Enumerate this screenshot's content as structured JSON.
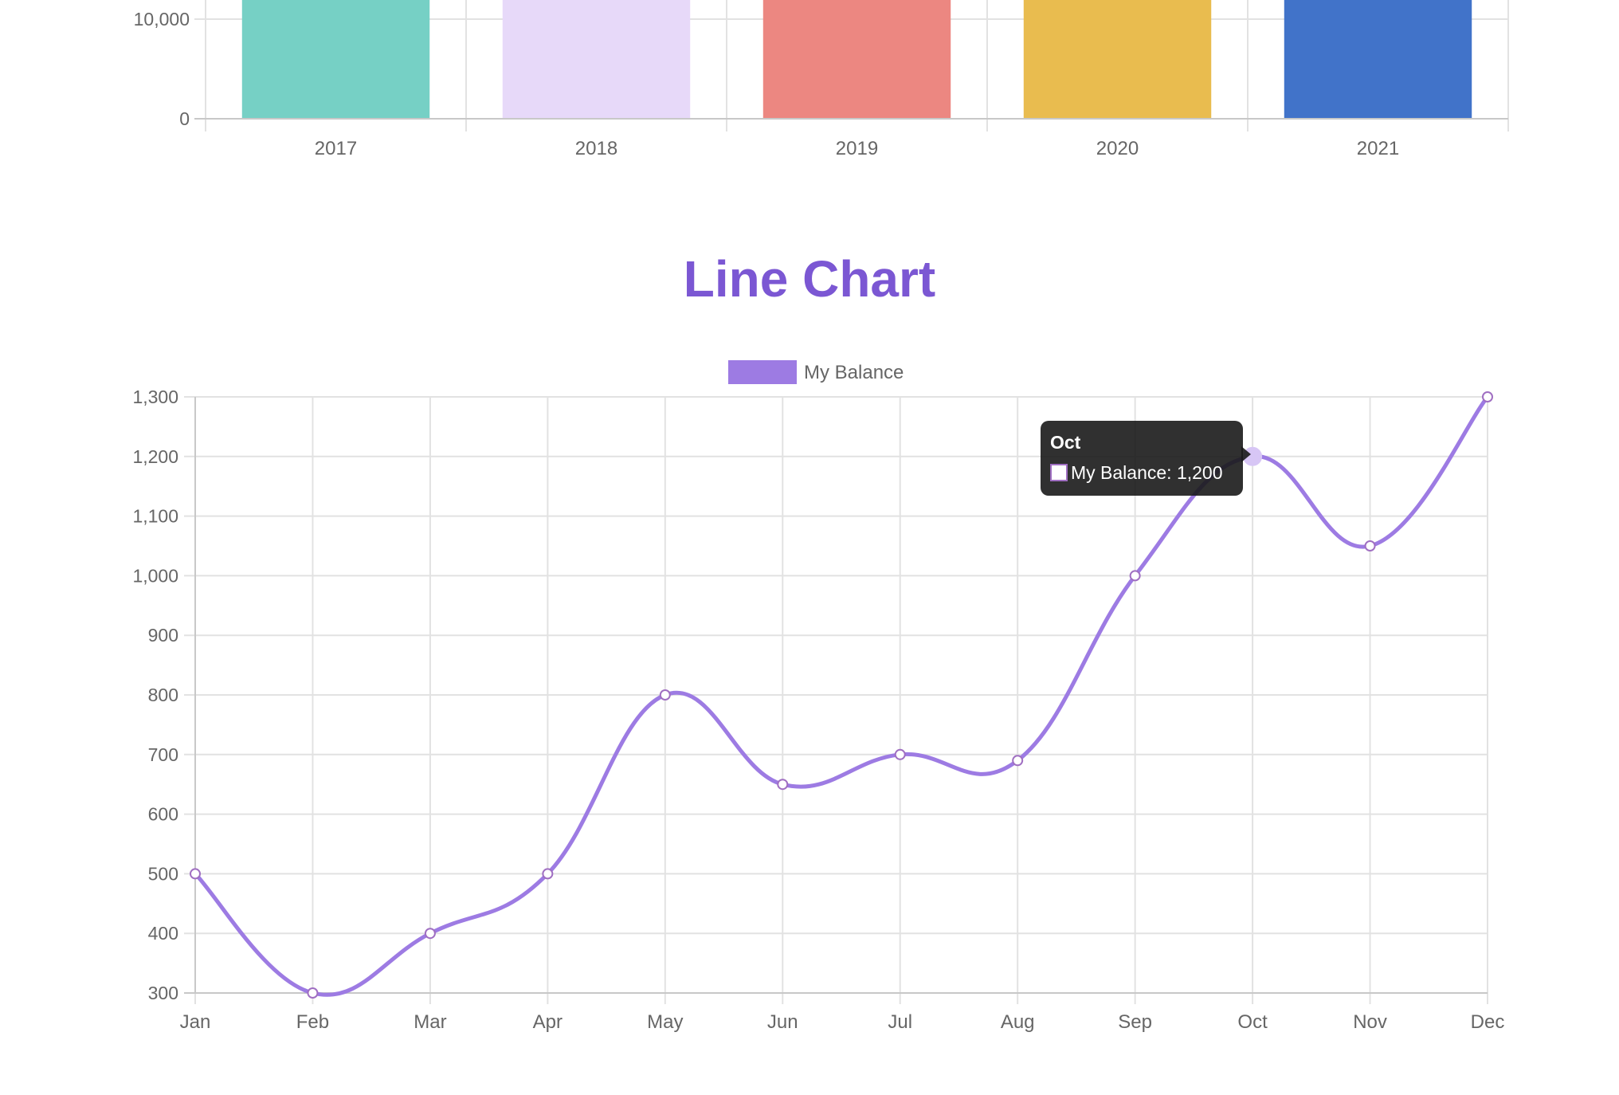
{
  "chart_data": [
    {
      "type": "bar",
      "categories": [
        "2017",
        "2018",
        "2019",
        "2020",
        "2021"
      ],
      "y_ticks_visible": [
        "0",
        "10,000"
      ],
      "colors": [
        "#76d0c5",
        "#e7d9f9",
        "#ec8781",
        "#e9bc4f",
        "#4173c9"
      ],
      "grid": true
    },
    {
      "type": "line",
      "title": "Line Chart",
      "legend": {
        "label": "My Balance",
        "color": "#9d7be3",
        "placement": "top-center"
      },
      "categories": [
        "Jan",
        "Feb",
        "Mar",
        "Apr",
        "May",
        "Jun",
        "Jul",
        "Aug",
        "Sep",
        "Oct",
        "Nov",
        "Dec"
      ],
      "series": [
        {
          "name": "My Balance",
          "values": [
            500,
            300,
            400,
            500,
            800,
            650,
            700,
            690,
            1000,
            1200,
            1050,
            1300
          ],
          "color": "#9d7be3"
        }
      ],
      "y_ticks": [
        "300",
        "400",
        "500",
        "600",
        "700",
        "800",
        "900",
        "1,000",
        "1,100",
        "1,200",
        "1,300"
      ],
      "ylim": [
        300,
        1300
      ],
      "grid": true,
      "tooltip": {
        "title": "Oct",
        "label": "My Balance: 1,200",
        "active_index": 9
      }
    }
  ]
}
